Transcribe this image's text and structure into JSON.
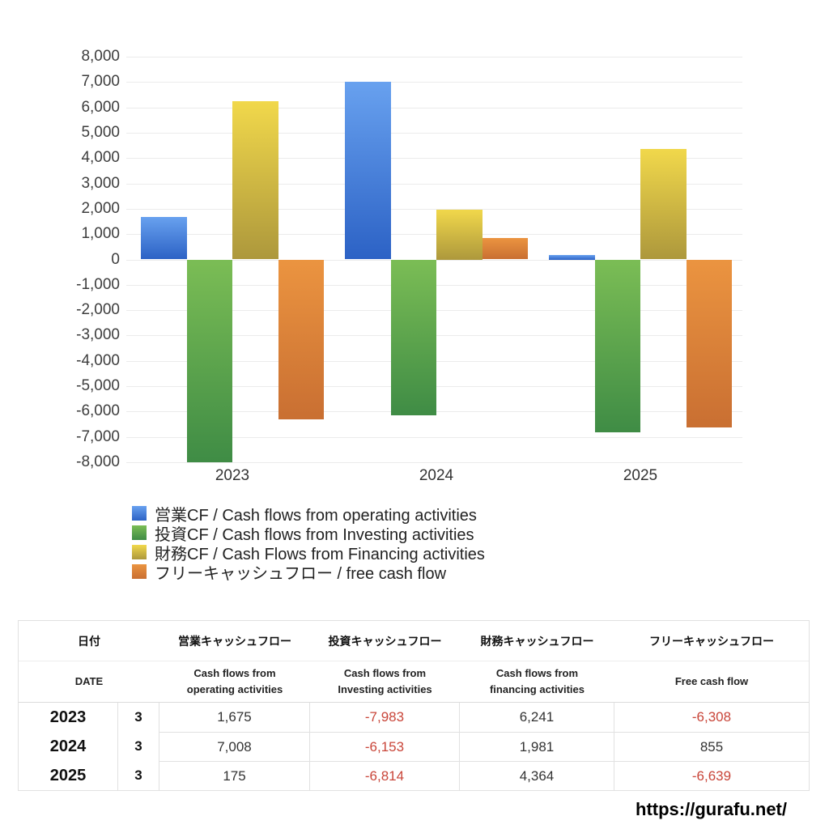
{
  "chart_data": {
    "type": "bar",
    "title": "",
    "categories": [
      "2023",
      "2024",
      "2025"
    ],
    "series": [
      {
        "id": "operating",
        "label": "営業CF / Cash flows from operating activities",
        "color_top": "#68a1ef",
        "color_bottom": "#2c62c5",
        "values": [
          1675,
          7008,
          175
        ]
      },
      {
        "id": "investing",
        "label": "投資CF / Cash flows from Investing activities",
        "color_top": "#7bbd55",
        "color_bottom": "#3f8c45",
        "values": [
          -7983,
          -6153,
          -6814
        ]
      },
      {
        "id": "financing",
        "label": "財務CF / Cash Flows from Financing activities",
        "color_top": "#f1d84b",
        "color_bottom": "#ad983c",
        "values": [
          6241,
          1981,
          4364
        ]
      },
      {
        "id": "free-cash-flow",
        "label": "フリーキャッシュフロー / free cash flow",
        "color_top": "#eb9440",
        "color_bottom": "#c96f32",
        "values": [
          -6308,
          855,
          -6639
        ]
      }
    ],
    "ylim": [
      -8000,
      8000
    ],
    "ytick_step": 1000,
    "grid": true,
    "gridline_color": "#ebebeb",
    "legend_position": "bottom-left"
  },
  "table": {
    "header_jp": [
      "日付",
      "営業キャッシュフロー",
      "投資キャッシュフロー",
      "財務キャッシュフロー",
      "フリーキャッシュフロー"
    ],
    "header_en": [
      [
        "DATE"
      ],
      [
        "Cash flows from",
        "operating activities"
      ],
      [
        "Cash flows from",
        "Investing activities"
      ],
      [
        "Cash flows from",
        "financing activities"
      ],
      [
        "Free cash flow"
      ]
    ],
    "rows": [
      {
        "year": "2023",
        "month": "3",
        "values": [
          "1,675",
          "-7,983",
          "6,241",
          "-6,308"
        ]
      },
      {
        "year": "2024",
        "month": "3",
        "values": [
          "7,008",
          "-6,153",
          "1,981",
          "855"
        ]
      },
      {
        "year": "2025",
        "month": "3",
        "values": [
          "175",
          "-6,814",
          "4,364",
          "-6,639"
        ]
      }
    ],
    "negative_color": "#c9463a"
  },
  "footer": {
    "url": "https://gurafu.net/"
  }
}
